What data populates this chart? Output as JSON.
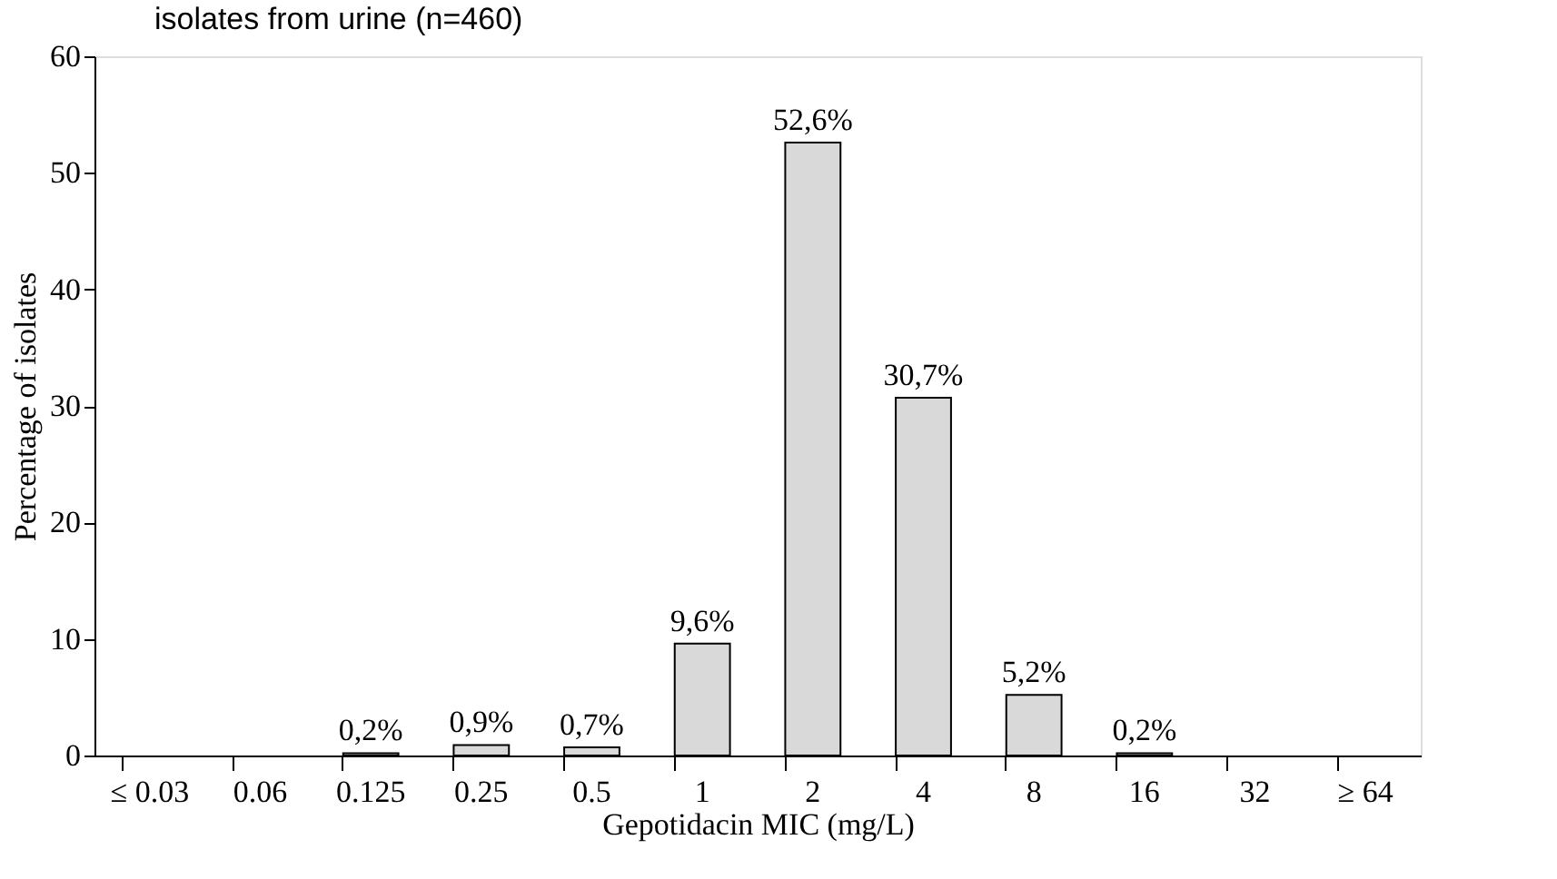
{
  "chart_data": {
    "type": "bar",
    "title": "isolates from urine (n=460)",
    "xlabel": "Gepotidacin MIC (mg/L)",
    "ylabel": "Percentage of isolates",
    "categories": [
      "≤ 0.03",
      "0.06",
      "0.125",
      "0.25",
      "0.5",
      "1",
      "2",
      "4",
      "8",
      "16",
      "32",
      "≥ 64"
    ],
    "values": [
      0,
      0,
      0.2,
      0.9,
      0.7,
      9.6,
      52.6,
      30.7,
      5.2,
      0.2,
      0,
      0
    ],
    "value_labels": [
      null,
      null,
      "0,2%",
      "0,9%",
      "0,7%",
      "9,6%",
      "52,6%",
      "30,7%",
      "5,2%",
      "0,2%",
      null,
      null
    ],
    "color": "#d9d9d9",
    "ylim": [
      0,
      60
    ],
    "yticks": [
      0,
      10,
      20,
      30,
      40,
      50,
      60
    ],
    "grid": false
  }
}
